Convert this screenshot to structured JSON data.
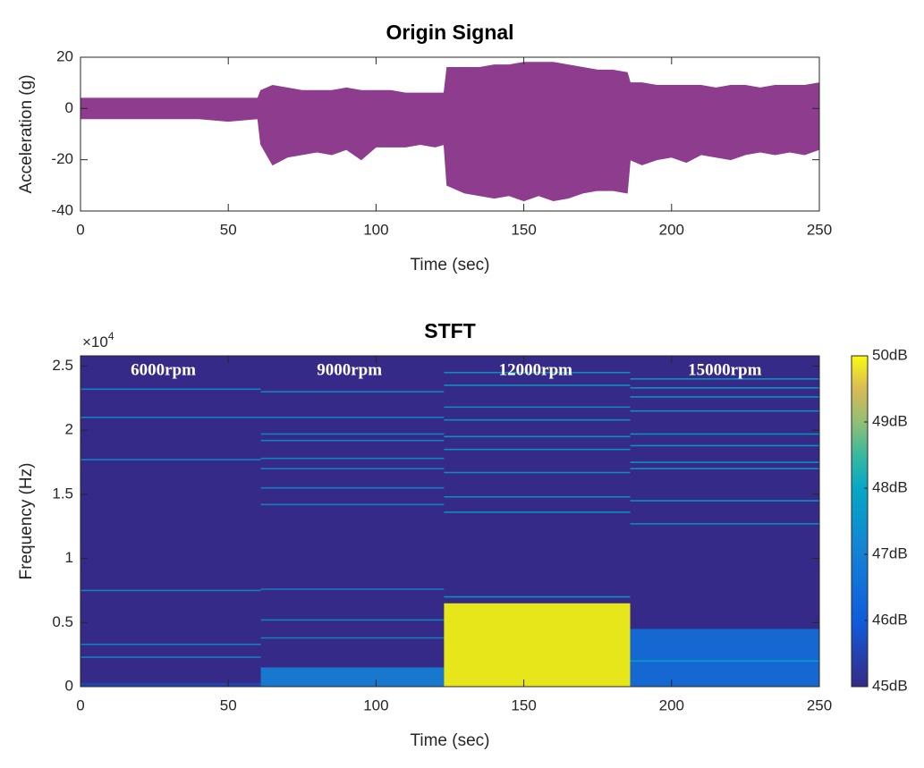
{
  "chart_data": [
    {
      "type": "area",
      "title": "Origin Signal",
      "xlabel": "Time (sec)",
      "ylabel": "Acceleration (g)",
      "color": "#8e3c8e",
      "xlim": [
        0,
        250
      ],
      "xticks": [
        0,
        50,
        100,
        150,
        200,
        250
      ],
      "ylim": [
        -40,
        20
      ],
      "yticks": [
        -40,
        -20,
        0,
        20
      ],
      "x": [
        0,
        10,
        20,
        30,
        40,
        50,
        60,
        61,
        65,
        70,
        75,
        80,
        85,
        90,
        95,
        100,
        105,
        110,
        115,
        120,
        123,
        124,
        130,
        135,
        140,
        145,
        150,
        155,
        160,
        165,
        170,
        175,
        180,
        185,
        186,
        190,
        195,
        200,
        205,
        210,
        215,
        220,
        225,
        230,
        235,
        240,
        245,
        250
      ],
      "upper": [
        4,
        4,
        4,
        4,
        4,
        4,
        4,
        7,
        9,
        8,
        7,
        7,
        7,
        8,
        7,
        7,
        7,
        6,
        6,
        6,
        6,
        16,
        16,
        16,
        17,
        17,
        18,
        18,
        18,
        17,
        16,
        15,
        15,
        14,
        10,
        10,
        9,
        9,
        9,
        9,
        8,
        9,
        9,
        8,
        9,
        9,
        9,
        10
      ],
      "lower": [
        -4,
        -4,
        -4,
        -4,
        -4,
        -5,
        -4,
        -14,
        -22,
        -19,
        -18,
        -17,
        -18,
        -16,
        -20,
        -15,
        -15,
        -15,
        -14,
        -15,
        -14,
        -30,
        -33,
        -34,
        -35,
        -34,
        -36,
        -34,
        -36,
        -35,
        -33,
        -32,
        -32,
        -33,
        -20,
        -22,
        -20,
        -19,
        -21,
        -18,
        -19,
        -20,
        -18,
        -17,
        -18,
        -17,
        -18,
        -16
      ]
    },
    {
      "type": "spectrogram",
      "title": "STFT",
      "xlabel": "Time (sec)",
      "ylabel": "Frequency (Hz)",
      "multiplier": "×10",
      "multiplier_exponent": "4",
      "colormap": "parula",
      "xlim": [
        0,
        250
      ],
      "xticks": [
        0,
        50,
        100,
        150,
        200,
        250
      ],
      "ylim": [
        0,
        25800
      ],
      "yticks": [
        0,
        {
          "value": 5000,
          "label": "0.5"
        },
        {
          "value": 10000,
          "label": "1"
        },
        {
          "value": 15000,
          "label": "1.5"
        },
        {
          "value": 20000,
          "label": "2"
        },
        {
          "value": 25000,
          "label": "2.5"
        }
      ],
      "clim": [
        45,
        50
      ],
      "colorbar_ticks": [
        {
          "value": 45,
          "label": "45dB"
        },
        {
          "value": 46,
          "label": "46dB"
        },
        {
          "value": 47,
          "label": "47dB"
        },
        {
          "value": 48,
          "label": "48dB"
        },
        {
          "value": 49,
          "label": "49dB"
        },
        {
          "value": 50,
          "label": "50dB"
        }
      ],
      "segments": [
        {
          "x": [
            0,
            61
          ],
          "tones": [
            2300,
            3300,
            7500,
            17700,
            21000,
            23200
          ],
          "tone_db": 47.5,
          "noise": {
            "top": 300,
            "value": 45.5
          }
        },
        {
          "x": [
            61,
            123
          ],
          "tones": [
            3800,
            5200,
            7600,
            14200,
            15500,
            17000,
            17800,
            19200,
            19700,
            21000,
            23000
          ],
          "tone_db": 47.5,
          "noise": {
            "top": 1500,
            "value": 47
          }
        },
        {
          "x": [
            123,
            186
          ],
          "tones": [
            7000,
            13600,
            14800,
            16700,
            18500,
            19500,
            20800,
            21800,
            23500,
            24500
          ],
          "tone_db": 48,
          "noise": {
            "top": 6500,
            "value": 50
          }
        },
        {
          "x": [
            186,
            250
          ],
          "tones": [
            2000,
            12700,
            14500,
            17000,
            17500,
            18800,
            19700,
            21500,
            22600,
            23300,
            24000
          ],
          "tone_db": 48,
          "noise": {
            "top": 4500,
            "value": 46.5
          }
        }
      ],
      "annotations": [
        {
          "text": "6000rpm",
          "x": 28,
          "y": 24600
        },
        {
          "text": "9000rpm",
          "x": 91,
          "y": 24600
        },
        {
          "text": "12000rpm",
          "x": 154,
          "y": 24600
        },
        {
          "text": "15000rpm",
          "x": 218,
          "y": 24600
        }
      ]
    }
  ]
}
